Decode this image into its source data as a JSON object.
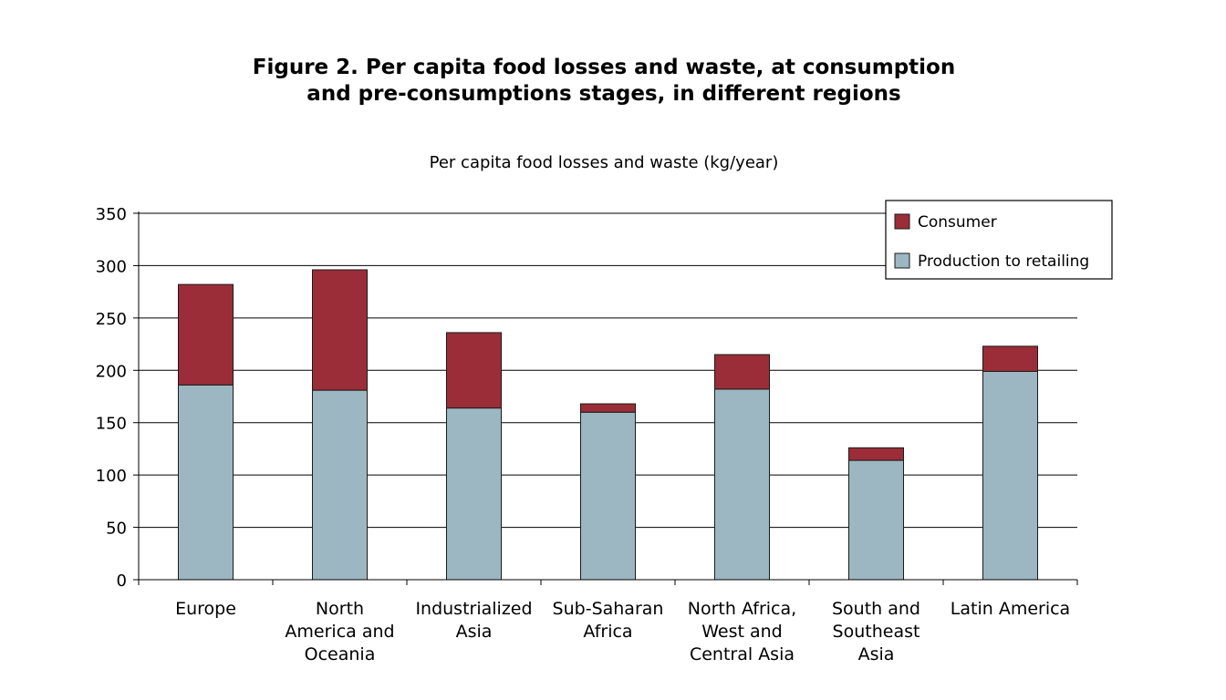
{
  "figure": {
    "title_line1": "Figure 2.  Per capita food losses and waste, at consumption",
    "title_line2": "and pre-consumptions stages, in different regions"
  },
  "chart_data": {
    "type": "bar",
    "stacked": true,
    "title": "Per capita food losses and waste (kg/year)",
    "xlabel": "",
    "ylabel": "",
    "ylim": [
      0,
      350
    ],
    "yticks": [
      0,
      50,
      100,
      150,
      200,
      250,
      300,
      350
    ],
    "grid": true,
    "legend": "top-right",
    "categories": [
      [
        "Europe"
      ],
      [
        "North",
        "America and",
        "Oceania"
      ],
      [
        "Industrialized",
        "Asia"
      ],
      [
        "Sub-Saharan",
        "Africa"
      ],
      [
        "North Africa,",
        "West and",
        "Central Asia"
      ],
      [
        "South and",
        "Southeast",
        "Asia"
      ],
      [
        "Latin America"
      ]
    ],
    "series": [
      {
        "name": "Production to retailing",
        "color": "#9db7c2",
        "values": [
          186,
          181,
          164,
          160,
          182,
          114,
          199
        ]
      },
      {
        "name": "Consumer",
        "color": "#9b2d38",
        "values": [
          96,
          115,
          72,
          8,
          33,
          12,
          24
        ]
      }
    ],
    "legend_order": [
      "Consumer",
      "Production to retailing"
    ]
  }
}
